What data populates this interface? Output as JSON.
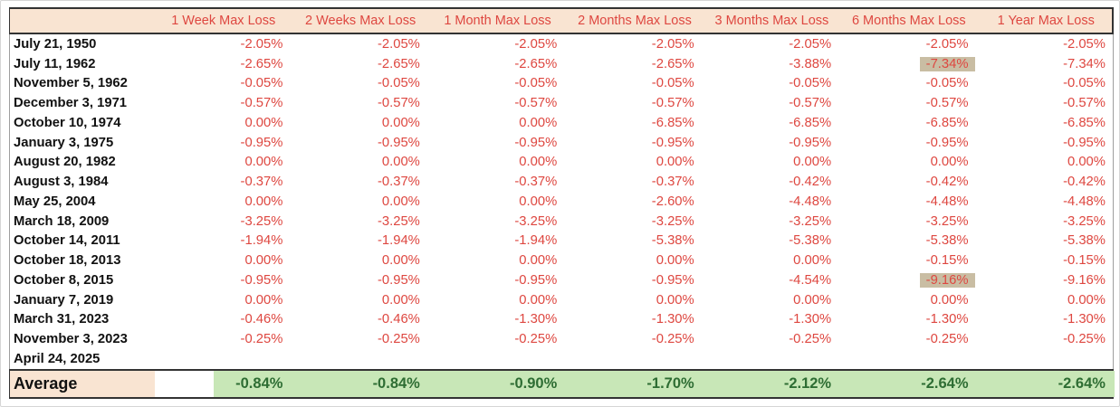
{
  "table": {
    "columns": [
      "1 Week Max Loss",
      "2 Weeks Max Loss",
      "1 Month Max Loss",
      "2 Months Max Loss",
      "3 Months Max Loss",
      "6 Months Max Loss",
      "1 Year Max Loss"
    ],
    "rows": [
      {
        "date": "July 21, 1950",
        "values": [
          "-2.05%",
          "-2.05%",
          "-2.05%",
          "-2.05%",
          "-2.05%",
          "-2.05%",
          "-2.05%"
        ]
      },
      {
        "date": "July 11, 1962",
        "values": [
          "-2.65%",
          "-2.65%",
          "-2.65%",
          "-2.65%",
          "-3.88%",
          "-7.34%",
          "-7.34%"
        ],
        "highlight_col": 5
      },
      {
        "date": "November 5, 1962",
        "values": [
          "-0.05%",
          "-0.05%",
          "-0.05%",
          "-0.05%",
          "-0.05%",
          "-0.05%",
          "-0.05%"
        ]
      },
      {
        "date": "December 3, 1971",
        "values": [
          "-0.57%",
          "-0.57%",
          "-0.57%",
          "-0.57%",
          "-0.57%",
          "-0.57%",
          "-0.57%"
        ]
      },
      {
        "date": "October 10, 1974",
        "values": [
          "0.00%",
          "0.00%",
          "0.00%",
          "-6.85%",
          "-6.85%",
          "-6.85%",
          "-6.85%"
        ]
      },
      {
        "date": "January 3, 1975",
        "values": [
          "-0.95%",
          "-0.95%",
          "-0.95%",
          "-0.95%",
          "-0.95%",
          "-0.95%",
          "-0.95%"
        ]
      },
      {
        "date": "August 20, 1982",
        "values": [
          "0.00%",
          "0.00%",
          "0.00%",
          "0.00%",
          "0.00%",
          "0.00%",
          "0.00%"
        ]
      },
      {
        "date": "August 3, 1984",
        "values": [
          "-0.37%",
          "-0.37%",
          "-0.37%",
          "-0.37%",
          "-0.42%",
          "-0.42%",
          "-0.42%"
        ]
      },
      {
        "date": "May 25, 2004",
        "values": [
          "0.00%",
          "0.00%",
          "0.00%",
          "-2.60%",
          "-4.48%",
          "-4.48%",
          "-4.48%"
        ]
      },
      {
        "date": "March 18, 2009",
        "values": [
          "-3.25%",
          "-3.25%",
          "-3.25%",
          "-3.25%",
          "-3.25%",
          "-3.25%",
          "-3.25%"
        ]
      },
      {
        "date": "October 14, 2011",
        "values": [
          "-1.94%",
          "-1.94%",
          "-1.94%",
          "-5.38%",
          "-5.38%",
          "-5.38%",
          "-5.38%"
        ]
      },
      {
        "date": "October 18, 2013",
        "values": [
          "0.00%",
          "0.00%",
          "0.00%",
          "0.00%",
          "0.00%",
          "-0.15%",
          "-0.15%"
        ]
      },
      {
        "date": "October 8, 2015",
        "values": [
          "-0.95%",
          "-0.95%",
          "-0.95%",
          "-0.95%",
          "-4.54%",
          "-9.16%",
          "-9.16%"
        ],
        "highlight_col": 5
      },
      {
        "date": "January 7, 2019",
        "values": [
          "0.00%",
          "0.00%",
          "0.00%",
          "0.00%",
          "0.00%",
          "0.00%",
          "0.00%"
        ]
      },
      {
        "date": "March 31, 2023",
        "values": [
          "-0.46%",
          "-0.46%",
          "-1.30%",
          "-1.30%",
          "-1.30%",
          "-1.30%",
          "-1.30%"
        ]
      },
      {
        "date": "November 3, 2023",
        "values": [
          "-0.25%",
          "-0.25%",
          "-0.25%",
          "-0.25%",
          "-0.25%",
          "-0.25%",
          "-0.25%"
        ]
      },
      {
        "date": "April 24, 2025",
        "values": [
          "",
          "",
          "",
          "",
          "",
          "",
          ""
        ]
      }
    ],
    "average": {
      "label": "Average",
      "values": [
        "-0.84%",
        "-0.84%",
        "-0.90%",
        "-1.70%",
        "-2.12%",
        "-2.64%",
        "-2.64%"
      ]
    }
  },
  "colors": {
    "header_bg": "#f9e4d2",
    "loss_text": "#de4740",
    "highlight_bg": "#c9bda3",
    "average_bg": "#c8e7b7",
    "average_text": "#2e6d33",
    "border_dark": "#333333",
    "border_light": "#9e9e9e"
  }
}
